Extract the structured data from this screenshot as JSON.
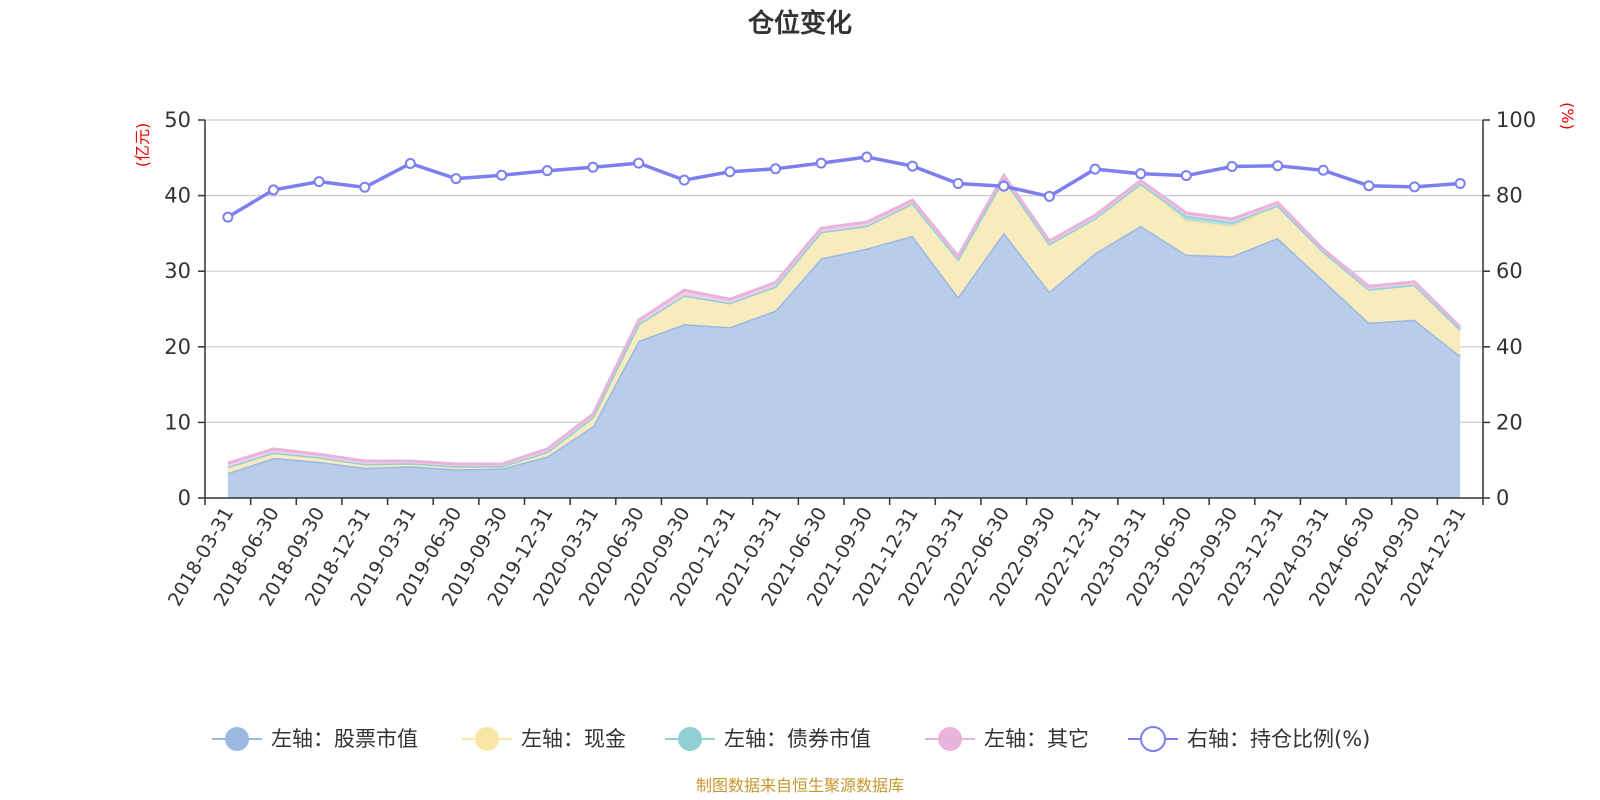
{
  "chart_data": {
    "type": "area",
    "title": "仓位变化",
    "left_unit": "(亿元)",
    "right_unit": "(%)",
    "left_ylim": [
      0,
      50
    ],
    "left_ticks": [
      0,
      10,
      20,
      30,
      40,
      50
    ],
    "right_ylim": [
      0,
      100
    ],
    "right_ticks": [
      0,
      20,
      40,
      60,
      80,
      100
    ],
    "grid": true,
    "legend_position": "bottom",
    "source": "制图数据来自恒生聚源数据库",
    "categories": [
      "2018-03-31",
      "2018-06-30",
      "2018-09-30",
      "2018-12-31",
      "2019-03-31",
      "2019-06-30",
      "2019-09-30",
      "2019-12-31",
      "2020-03-31",
      "2020-06-30",
      "2020-09-30",
      "2020-12-31",
      "2021-03-31",
      "2021-06-30",
      "2021-09-30",
      "2021-12-31",
      "2022-03-31",
      "2022-06-30",
      "2022-09-30",
      "2022-12-31",
      "2023-03-31",
      "2023-06-30",
      "2023-09-30",
      "2023-12-31",
      "2024-03-31",
      "2024-06-30",
      "2024-09-30",
      "2024-12-31"
    ],
    "series": [
      {
        "name": "左轴：股票市值",
        "axis": "left",
        "stack": true,
        "color": "#9bb8e3",
        "fill": "#b9cdeb",
        "values": [
          3.3,
          5.3,
          4.8,
          4.0,
          4.2,
          3.8,
          3.9,
          5.5,
          9.5,
          20.8,
          23.0,
          22.6,
          24.8,
          31.7,
          33.0,
          34.7,
          26.6,
          35.1,
          27.3,
          32.4,
          36.0,
          32.2,
          32.0,
          34.4,
          28.8,
          23.2,
          23.6,
          18.8
        ]
      },
      {
        "name": "左轴：现金",
        "axis": "left",
        "stack": true,
        "color": "#f7e6a4",
        "fill": "#f8ebbd",
        "values": [
          0.8,
          0.7,
          0.6,
          0.5,
          0.4,
          0.4,
          0.3,
          0.6,
          1.2,
          2.2,
          3.8,
          3.2,
          3.2,
          3.5,
          3.0,
          4.3,
          5.0,
          7.2,
          6.3,
          4.6,
          5.6,
          4.5,
          4.0,
          4.3,
          3.8,
          4.4,
          4.6,
          3.5
        ]
      },
      {
        "name": "左轴：债券市值",
        "axis": "left",
        "stack": true,
        "color": "#8fd0d4",
        "fill": "#b5e0e2",
        "values": [
          0,
          0,
          0,
          0,
          0,
          0,
          0,
          0,
          0,
          0,
          0,
          0,
          0,
          0,
          0,
          0,
          0,
          0,
          0,
          0,
          0,
          0.6,
          0.5,
          0,
          0,
          0,
          0,
          0
        ]
      },
      {
        "name": "左轴：其它",
        "axis": "left",
        "stack": true,
        "color": "#e8b4dc",
        "fill": "#f0cdea",
        "values": [
          0.5,
          0.5,
          0.4,
          0.4,
          0.3,
          0.3,
          0.3,
          0.4,
          0.4,
          0.5,
          0.7,
          0.5,
          0.5,
          0.5,
          0.5,
          0.4,
          0.4,
          0.4,
          0.4,
          0.4,
          0.4,
          0.4,
          0.4,
          0.4,
          0.3,
          0.4,
          0.4,
          0.3
        ]
      },
      {
        "name": "右轴：持仓比例(%)",
        "axis": "right",
        "type": "line",
        "color": "#7b7ff0",
        "values": [
          74.3,
          81.5,
          83.7,
          82.2,
          88.5,
          84.5,
          85.4,
          86.6,
          87.5,
          88.6,
          84.1,
          86.3,
          87.1,
          88.6,
          90.2,
          87.8,
          83.2,
          82.5,
          79.8,
          87.0,
          85.8,
          85.3,
          87.7,
          87.9,
          86.7,
          82.6,
          82.3,
          83.2
        ]
      }
    ]
  }
}
